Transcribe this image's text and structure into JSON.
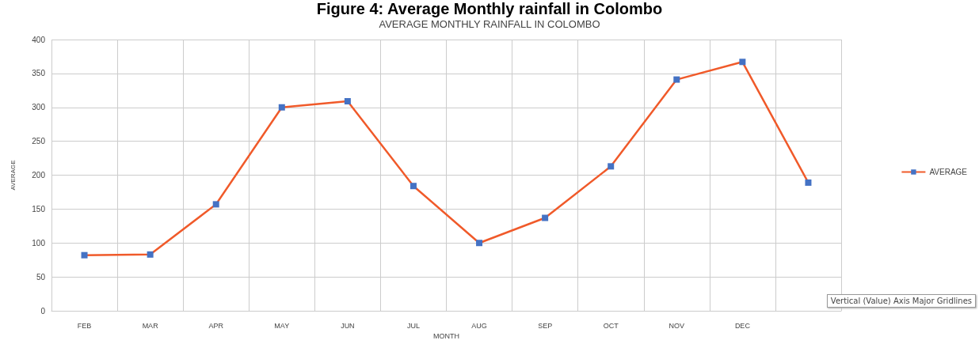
{
  "chart_data": {
    "type": "line",
    "title": "Figure 4: Average Monthly rainfall in Colombo",
    "subtitle": "AVERAGE MONTHLY RAINFALL IN COLOMBO",
    "xlabel": "MONTH",
    "ylabel": "AVERAGE",
    "categories": [
      "FEB",
      "MAR",
      "APR",
      "MAY",
      "JUN",
      "JUL",
      "AUG",
      "SEP",
      "OCT",
      "NOV",
      "DEC",
      null
    ],
    "series": [
      {
        "name": "AVERAGE",
        "color": "#f05a2a",
        "colors": [
          "#4472c4",
          "#4472c4",
          "#4472c4",
          "#4472c4",
          "#4472c4",
          "#4472c4",
          "#4472c4",
          "#4472c4",
          "#4472c4",
          "#4472c4",
          "#4472c4",
          "#4472c4"
        ],
        "values": [
          82,
          83,
          157,
          300,
          309,
          184,
          100,
          137,
          213,
          341,
          367,
          189
        ]
      }
    ],
    "ylim": [
      0,
      400
    ],
    "yticks": [
      0,
      50,
      100,
      150,
      200,
      250,
      300,
      350,
      400
    ],
    "grid": true,
    "legend": "right",
    "marker": "square",
    "line_style": "solid",
    "annotations": [
      "Vertical (Value) Axis Major Gridlines"
    ]
  }
}
